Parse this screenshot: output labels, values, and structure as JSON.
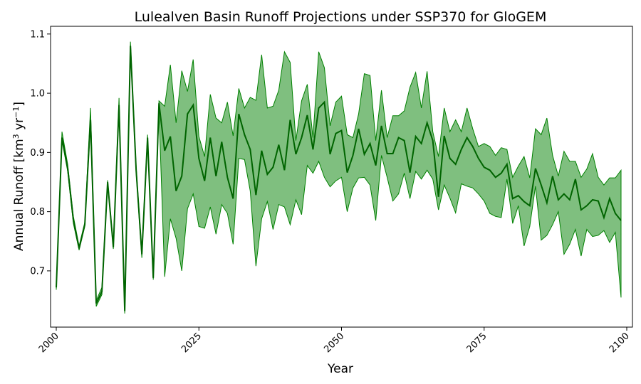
{
  "chart_data": {
    "type": "line",
    "title": "Lulealven Basin Runoff Projections under SSP370 for GloGEM",
    "xlabel": "Year",
    "ylabel_main": "Annual Runoff [km",
    "ylabel_sup1": "3",
    "ylabel_mid": " yr",
    "ylabel_sup2": "−1",
    "ylabel_end": "]",
    "xlim": [
      1999,
      2101
    ],
    "ylim": [
      0.605,
      1.113
    ],
    "xticks": [
      2000,
      2025,
      2050,
      2075,
      2100
    ],
    "xtick_labels": [
      "2000",
      "2025",
      "2050",
      "2075",
      "2100"
    ],
    "yticks": [
      0.7,
      0.8,
      0.9,
      1.0,
      1.1
    ],
    "ytick_labels": [
      "0.7",
      "0.8",
      "0.9",
      "1.0",
      "1.1"
    ],
    "grid": false,
    "colors": {
      "line": "#006400",
      "band_fill": "#008000",
      "band_alpha": 0.5
    },
    "series": [
      {
        "x": [
          2000,
          2001,
          2002,
          2003,
          2004,
          2005,
          2006,
          2007,
          2008,
          2009,
          2010,
          2011,
          2012,
          2013,
          2014,
          2015,
          2016,
          2017,
          2018,
          2019,
          2020,
          2021,
          2022,
          2023,
          2024,
          2025,
          2026,
          2027,
          2028,
          2029,
          2030,
          2031,
          2032,
          2033,
          2034,
          2035,
          2036,
          2037,
          2038,
          2039,
          2040,
          2041,
          2042,
          2043,
          2044,
          2045,
          2046,
          2047,
          2048,
          2049,
          2050,
          2051,
          2052,
          2053,
          2054,
          2055,
          2056,
          2057,
          2058,
          2059,
          2060,
          2061,
          2062,
          2063,
          2064,
          2065,
          2066,
          2067,
          2068,
          2069,
          2070,
          2071,
          2072,
          2073,
          2074,
          2075,
          2076,
          2077,
          2078,
          2079,
          2080,
          2081,
          2082,
          2083,
          2084,
          2085,
          2086,
          2087,
          2088,
          2089,
          2090,
          2091,
          2092,
          2093,
          2094,
          2095,
          2096,
          2097,
          2098,
          2099
        ],
        "mean": [
          0.672,
          0.925,
          0.873,
          0.785,
          0.738,
          0.778,
          0.955,
          0.645,
          0.665,
          0.85,
          0.74,
          0.98,
          0.632,
          1.08,
          0.87,
          0.728,
          0.925,
          0.688,
          0.983,
          0.903,
          0.927,
          0.835,
          0.86,
          0.965,
          0.98,
          0.89,
          0.852,
          0.925,
          0.86,
          0.918,
          0.858,
          0.822,
          0.965,
          0.93,
          0.905,
          0.828,
          0.903,
          0.863,
          0.875,
          0.913,
          0.87,
          0.955,
          0.897,
          0.925,
          0.963,
          0.905,
          0.975,
          0.985,
          0.897,
          0.932,
          0.937,
          0.866,
          0.895,
          0.94,
          0.897,
          0.915,
          0.878,
          0.945,
          0.898,
          0.898,
          0.925,
          0.92,
          0.866,
          0.927,
          0.915,
          0.95,
          0.92,
          0.825,
          0.928,
          0.89,
          0.88,
          0.905,
          0.925,
          0.91,
          0.89,
          0.875,
          0.87,
          0.858,
          0.865,
          0.88,
          0.822,
          0.827,
          0.817,
          0.81,
          0.873,
          0.845,
          0.815,
          0.86,
          0.82,
          0.83,
          0.82,
          0.855,
          0.803,
          0.81,
          0.82,
          0.818,
          0.79,
          0.822,
          0.797,
          0.785
        ],
        "upper": [
          0.676,
          0.935,
          0.88,
          0.792,
          0.742,
          0.782,
          0.975,
          0.65,
          0.672,
          0.853,
          0.745,
          0.992,
          0.637,
          1.087,
          0.876,
          0.733,
          0.93,
          0.692,
          0.987,
          0.978,
          1.048,
          0.95,
          1.038,
          1.003,
          1.057,
          0.927,
          0.893,
          0.998,
          0.958,
          0.95,
          0.985,
          0.928,
          1.008,
          0.975,
          0.993,
          0.988,
          1.065,
          0.975,
          0.978,
          1.005,
          1.07,
          1.052,
          0.92,
          0.987,
          1.015,
          0.925,
          1.07,
          1.043,
          0.945,
          0.985,
          0.995,
          0.93,
          0.925,
          0.965,
          1.033,
          1.03,
          0.92,
          1.005,
          0.925,
          0.962,
          0.962,
          0.97,
          1.01,
          1.035,
          0.975,
          1.037,
          0.935,
          0.893,
          0.975,
          0.935,
          0.955,
          0.935,
          0.975,
          0.94,
          0.91,
          0.915,
          0.91,
          0.895,
          0.908,
          0.905,
          0.858,
          0.877,
          0.893,
          0.857,
          0.94,
          0.93,
          0.958,
          0.895,
          0.86,
          0.902,
          0.885,
          0.885,
          0.858,
          0.872,
          0.898,
          0.858,
          0.845,
          0.857,
          0.857,
          0.87
        ],
        "lower": [
          0.668,
          0.92,
          0.868,
          0.78,
          0.735,
          0.775,
          0.95,
          0.64,
          0.66,
          0.848,
          0.737,
          0.973,
          0.628,
          1.075,
          0.865,
          0.722,
          0.92,
          0.685,
          0.97,
          0.69,
          0.788,
          0.755,
          0.7,
          0.805,
          0.83,
          0.775,
          0.772,
          0.808,
          0.762,
          0.812,
          0.797,
          0.745,
          0.89,
          0.888,
          0.835,
          0.708,
          0.788,
          0.817,
          0.77,
          0.812,
          0.808,
          0.778,
          0.82,
          0.795,
          0.878,
          0.865,
          0.885,
          0.858,
          0.842,
          0.852,
          0.858,
          0.8,
          0.84,
          0.857,
          0.858,
          0.845,
          0.785,
          0.895,
          0.858,
          0.818,
          0.83,
          0.865,
          0.822,
          0.868,
          0.855,
          0.87,
          0.855,
          0.803,
          0.845,
          0.823,
          0.798,
          0.847,
          0.843,
          0.84,
          0.83,
          0.818,
          0.797,
          0.792,
          0.79,
          0.855,
          0.78,
          0.81,
          0.742,
          0.775,
          0.843,
          0.752,
          0.76,
          0.778,
          0.8,
          0.728,
          0.745,
          0.77,
          0.725,
          0.77,
          0.758,
          0.76,
          0.768,
          0.748,
          0.765,
          0.655
        ]
      }
    ]
  }
}
